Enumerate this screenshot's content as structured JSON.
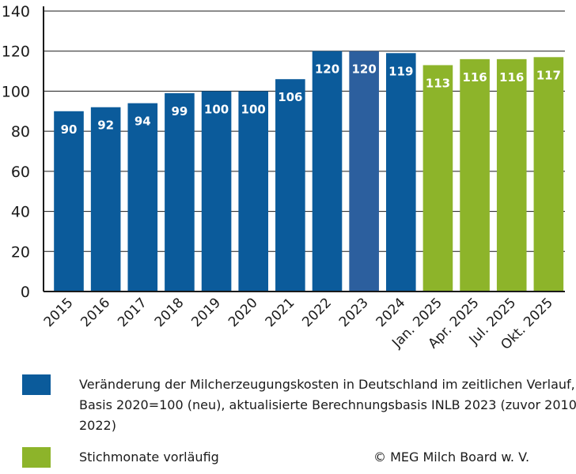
{
  "chart_data": {
    "type": "bar",
    "title": "",
    "xlabel": "",
    "ylabel": "",
    "ylim": [
      0,
      140
    ],
    "yticks": [
      0,
      20,
      40,
      60,
      80,
      100,
      120,
      140
    ],
    "categories": [
      "2015",
      "2016",
      "2017",
      "2018",
      "2019",
      "2020",
      "2021",
      "2022",
      "2023",
      "2024",
      "Jan. 2025",
      "Apr. 2025",
      "Jul. 2025",
      "Okt. 2025"
    ],
    "values": [
      90,
      92,
      94,
      99,
      100,
      100,
      106,
      120,
      120,
      119,
      113,
      116,
      116,
      117
    ],
    "value_labels": [
      "90",
      "92",
      "94",
      "99",
      "100",
      "100",
      "106",
      "120",
      "120",
      "119",
      "113",
      "116",
      "116",
      "117"
    ],
    "bar_colors": [
      "#0b5b9b",
      "#0b5b9b",
      "#0b5b9b",
      "#0b5b9b",
      "#0b5b9b",
      "#0b5b9b",
      "#0b5b9b",
      "#0b5b9b",
      "#2c5f9e",
      "#0b5b9b",
      "#8db42a",
      "#8db42a",
      "#8db42a",
      "#8db42a"
    ],
    "grid": true,
    "legend": [
      {
        "label": "Veränderung der Milcherzeugungskosten in Deutschland im zeitlichen Verlauf, Basis 2020=100 (neu), aktualisierte Berechnungsbasis INLB 2023 (zuvor 2010-2022)",
        "color": "#0b5b9b"
      },
      {
        "label": "Stichmonate vorläufig",
        "color": "#8db42a"
      }
    ]
  },
  "copyright": "© MEG Milch Board w. V."
}
